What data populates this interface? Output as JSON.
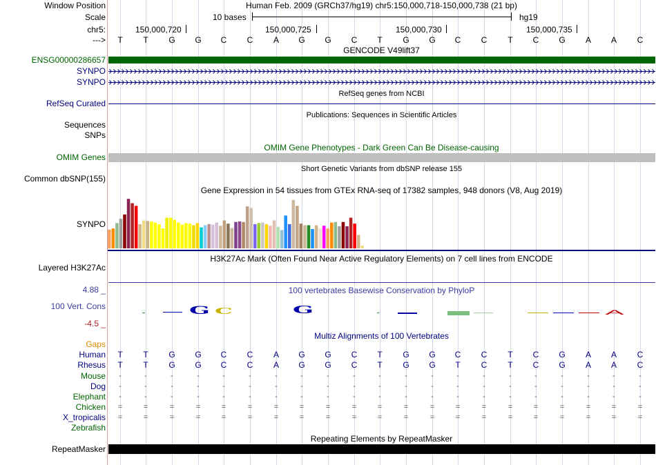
{
  "labels": {
    "window_position": "Window Position",
    "scale": "Scale",
    "chrom": "chr5:",
    "arrow": "--->",
    "gencode_gene": "ENSG00000286657",
    "synpo1": "SYNPO",
    "synpo2": "SYNPO",
    "refseq": "RefSeq Curated",
    "sequences": "Sequences",
    "snps": "SNPs",
    "omim": "OMIM Genes",
    "dbsnp": "Common dbSNP(155)",
    "gtex_gene": "SYNPO",
    "h3k27ac": "Layered H3K27Ac",
    "cons_max": "4.88 _",
    "cons_label": "100 Vert. Cons",
    "cons_min": "-4.5 _",
    "gaps": "Gaps",
    "human": "Human",
    "rhesus": "Rhesus",
    "mouse": "Mouse",
    "dog": "Dog",
    "elephant": "Elephant",
    "chicken": "Chicken",
    "xtrop": "X_tropicalis",
    "zebrafish": "Zebrafish",
    "repeatmasker": "RepeatMasker"
  },
  "header": {
    "assembly": "Human Feb. 2009 (GRCh37/hg19)   chr5:150,000,718-150,000,738 (21 bp)",
    "scale_text": "10 bases",
    "scale_db": "hg19",
    "positions": [
      "150,000,720",
      "150,000,725",
      "150,000,730",
      "150,000,735"
    ]
  },
  "sequence": [
    "T",
    "T",
    "G",
    "G",
    "C",
    "C",
    "A",
    "G",
    "G",
    "C",
    "T",
    "G",
    "G",
    "C",
    "C",
    "T",
    "C",
    "G",
    "A",
    "A",
    "C"
  ],
  "tracks": {
    "gencode": "GENCODE V49lift37",
    "refseq": "RefSeq genes from NCBI",
    "pubs": "Publications: Sequences in Scientific Articles",
    "omim": "OMIM Gene Phenotypes - Dark Green Can Be Disease-causing",
    "dbsnp": "Short Genetic Variants from dbSNP release 155",
    "gtex": "Gene Expression in 54 tissues from GTEx RNA-seq of 17382 samples, 948 donors (V8, Aug 2019)",
    "h3k27ac": "H3K27Ac Mark (Often Found Near Active Regulatory Elements) on 7 cell lines from ENCODE",
    "phylop": "100 vertebrates Basewise Conservation by PhyloP",
    "multiz": "Multiz Alignments of 100 Vertebrates",
    "rmsk": "Repeating Elements by RepeatMasker"
  },
  "alignment": {
    "rhesus": [
      "T",
      "T",
      "G",
      "G",
      "C",
      "C",
      "A",
      "G",
      "G",
      "C",
      "T",
      "G",
      "G",
      "T",
      "C",
      "T",
      "C",
      "G",
      "A",
      "A",
      "C"
    ],
    "dash_row": "-",
    "eq_row": "="
  },
  "colors": {
    "gencode": "#006400",
    "omim": "#bebebe",
    "rmsk": "#000000",
    "navy": "#000080",
    "grid": "#d8d8ec"
  },
  "gtex_values": [
    0.35,
    0.37,
    0.47,
    0.55,
    0.63,
    0.92,
    0.84,
    0.79,
    0.45,
    0.52,
    0.51,
    0.5,
    0.48,
    0.45,
    0.37,
    0.57,
    0.57,
    0.53,
    0.48,
    0.44,
    0.47,
    0.46,
    0.43,
    0.47,
    0.39,
    0.43,
    0.45,
    0.44,
    0.48,
    0.42,
    0.52,
    0.46,
    0.38,
    0.49,
    0.5,
    0.49,
    0.78,
    0.75,
    0.45,
    0.47,
    0.48,
    0.45,
    0.42,
    0.52,
    0.4,
    0.34,
    0.61,
    0.45,
    0.9,
    0.79,
    0.46,
    0.43,
    0.43,
    0.36,
    0.43,
    0.37,
    0.42,
    0.37,
    0.48,
    0.49,
    0.41,
    0.49,
    0.41,
    0.57,
    0.46,
    0.25,
    0.05
  ]
}
